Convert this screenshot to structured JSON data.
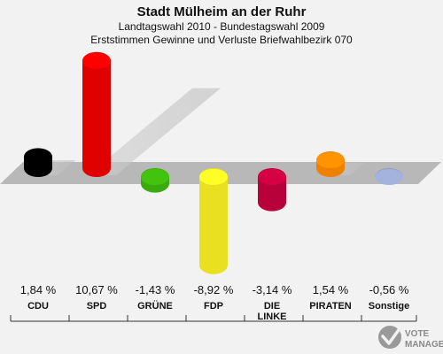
{
  "chart_data": {
    "type": "bar",
    "title": "Stadt Mülheim an der Ruhr",
    "subtitle_1": "Landtagswahl 2010 - Bundestagswahl 2009",
    "subtitle_2": "Erststimmen Gewinne und Verluste Briefwahlbezirk 070",
    "categories": [
      "CDU",
      "SPD",
      "GRÜNE",
      "FDP",
      "DIE\nLINKE",
      "PIRATEN",
      "Sonstige"
    ],
    "values": [
      1.84,
      10.67,
      -1.43,
      -8.92,
      -3.14,
      1.54,
      -0.56
    ],
    "value_labels": [
      "1,84 %",
      "10,67 %",
      "-1,43 %",
      "-8,92 %",
      "-3,14 %",
      "1,54 %",
      "-0,56 %"
    ],
    "colors": [
      "#000000",
      "#e00000",
      "#3aaa0c",
      "#e8e020",
      "#b8003a",
      "#f08000",
      "#8e9cc0"
    ],
    "ylim": [
      -10,
      12
    ]
  },
  "watermark": {
    "line1": "VOTE",
    "line2": "MANAGER",
    "icon": "checkmark-ballot-icon"
  }
}
